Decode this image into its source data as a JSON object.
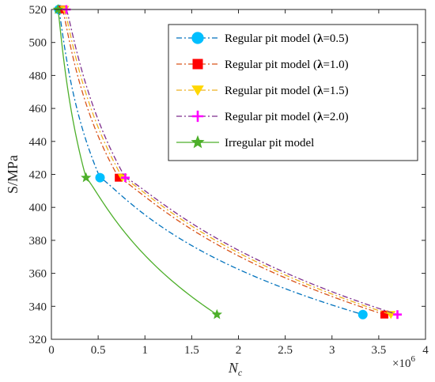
{
  "chart_data": {
    "type": "line",
    "title": "",
    "xlabel_main": "N",
    "xlabel_sub": "c",
    "ylabel": "S/MPa",
    "x_multiplier_base": "×10",
    "x_multiplier_exp": "6",
    "xlim": [
      0,
      4
    ],
    "ylim": [
      320,
      520
    ],
    "xticks": [
      0,
      0.5,
      1,
      1.5,
      2,
      2.5,
      3,
      3.5,
      4
    ],
    "xtick_labels": [
      "0",
      "0.5",
      "1",
      "1.5",
      "2",
      "2.5",
      "3",
      "3.5",
      "4"
    ],
    "yticks": [
      320,
      340,
      360,
      380,
      400,
      420,
      440,
      460,
      480,
      500,
      520
    ],
    "ytick_labels": [
      "320",
      "340",
      "360",
      "380",
      "400",
      "420",
      "440",
      "460",
      "480",
      "500",
      "520"
    ],
    "grid": false,
    "legend_position": "top-right",
    "series": [
      {
        "name": "Regular pit model (λ=0.5)",
        "legend_prefix": "Regular pit model (",
        "legend_greek": "λ",
        "legend_suffix": "=0.5)",
        "color": "#0072BD",
        "marker_color": "#00BFFF",
        "marker": "circle",
        "dash": "7,3,2,3",
        "x": [
          0.08,
          0.52,
          3.33
        ],
        "y": [
          520,
          418,
          335
        ]
      },
      {
        "name": "Regular pit model (λ=1.0)",
        "legend_prefix": "Regular pit model (",
        "legend_greek": "λ",
        "legend_suffix": "=1.0)",
        "color": "#D95319",
        "marker_color": "#FF0000",
        "marker": "square",
        "dash": "7,3,2,3",
        "x": [
          0.12,
          0.72,
          3.56
        ],
        "y": [
          520,
          418,
          335
        ]
      },
      {
        "name": "Regular pit model (λ=1.5)",
        "legend_prefix": "Regular pit model (",
        "legend_greek": "λ",
        "legend_suffix": "=1.5)",
        "color": "#EDB120",
        "marker_color": "#FFD700",
        "marker": "triangle-down",
        "dash": "7,3,2,3",
        "x": [
          0.14,
          0.76,
          3.63
        ],
        "y": [
          520,
          418,
          335
        ]
      },
      {
        "name": "Regular pit model (λ=2.0)",
        "legend_prefix": "Regular pit model (",
        "legend_greek": "λ",
        "legend_suffix": "=2.0)",
        "color": "#7E2F8E",
        "marker_color": "#FF00FF",
        "marker": "plus",
        "dash": "7,3,2,3",
        "x": [
          0.16,
          0.79,
          3.7
        ],
        "y": [
          520,
          418,
          335
        ]
      },
      {
        "name": "Irregular pit model",
        "legend_prefix": "Irregular pit model",
        "legend_greek": "",
        "legend_suffix": "",
        "color": "#4DAF2A",
        "marker_color": "#4DAF2A",
        "marker": "star",
        "dash": "",
        "x": [
          0.07,
          0.37,
          1.77
        ],
        "y": [
          520,
          418,
          335
        ]
      }
    ]
  }
}
